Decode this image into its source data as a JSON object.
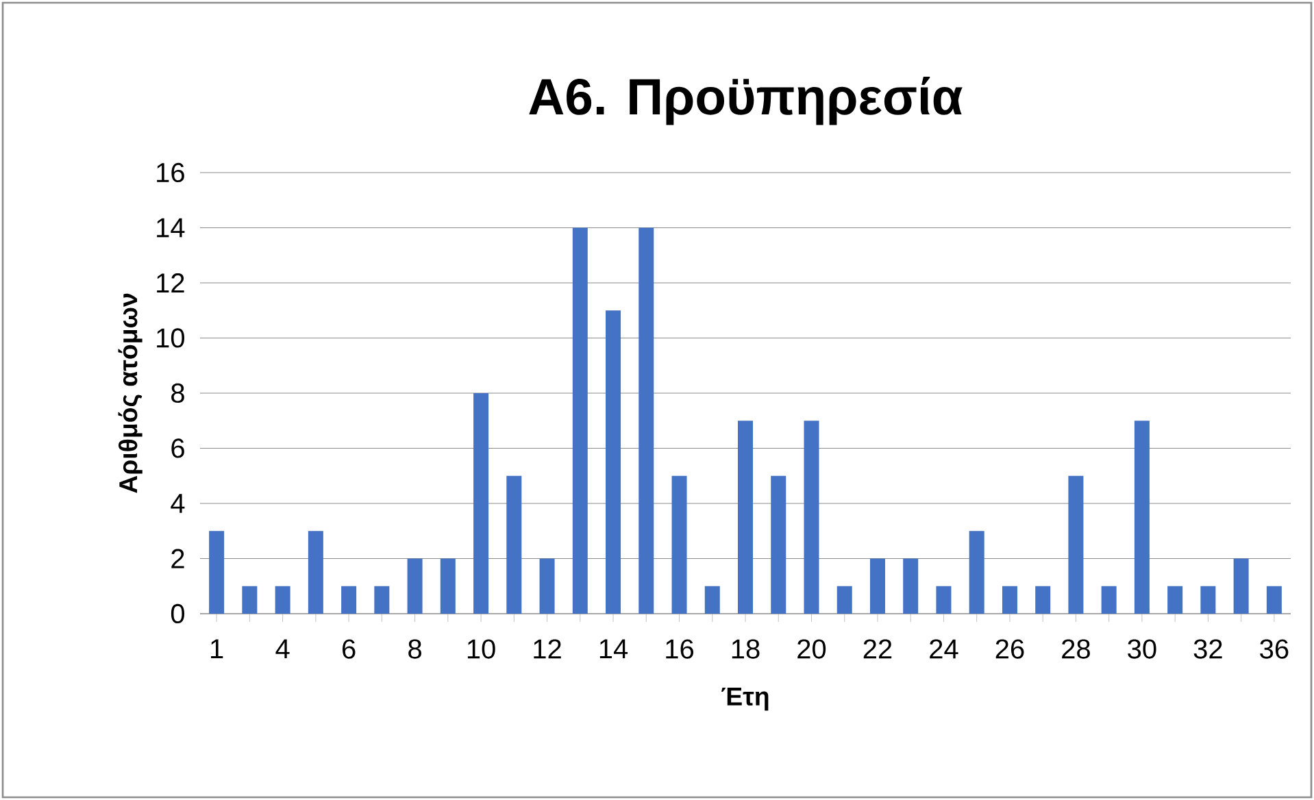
{
  "chart_data": {
    "type": "bar",
    "title": "Α6. Προϋπηρεσία",
    "xlabel": "Έτη",
    "ylabel": "Αριθμός ατόμων",
    "categories": [
      "1",
      null,
      "4",
      null,
      "6",
      null,
      "8",
      null,
      "10",
      null,
      "12",
      null,
      "14",
      null,
      "16",
      null,
      "18",
      null,
      "20",
      null,
      "22",
      null,
      "24",
      null,
      "26",
      null,
      "28",
      null,
      "30",
      null,
      "32",
      null,
      "36"
    ],
    "values": [
      3,
      1,
      1,
      3,
      1,
      1,
      2,
      2,
      8,
      5,
      2,
      14,
      11,
      14,
      5,
      1,
      7,
      5,
      7,
      1,
      2,
      2,
      1,
      3,
      1,
      1,
      5,
      1,
      7,
      1,
      1,
      2,
      1
    ],
    "color": "#4472c4",
    "ylim": [
      0,
      16
    ],
    "yticks": [
      0,
      2,
      4,
      6,
      8,
      10,
      12,
      14,
      16
    ],
    "grid": "y"
  }
}
